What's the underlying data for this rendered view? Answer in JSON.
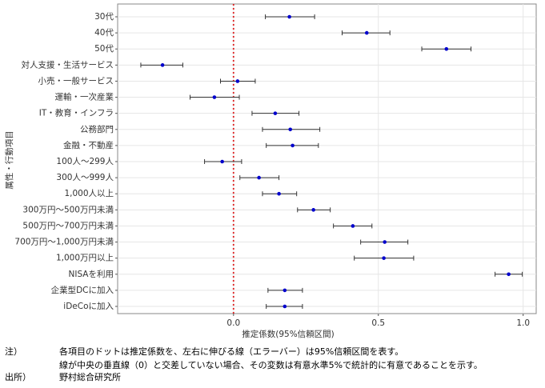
{
  "chart_data": {
    "type": "dot",
    "x_label": "推定係数(95%信頼区間)",
    "y_label": "属性・行動項目",
    "categories": [
      "30代",
      "40代",
      "50代",
      "対人支援・生活サービス",
      "小売・一般サービス",
      "運輸・一次産業",
      "IT・教育・インフラ",
      "公務部門",
      "金融・不動産",
      "100人～299人",
      "300人～999人",
      "1,000人以上",
      "300万円～500万円未満",
      "500万円～700万円未満",
      "700万円～1,000万円未満",
      "1,000万円以上",
      "NISAを利用",
      "企業型DCに加入",
      "iDeCoに加入"
    ],
    "values": [
      0.193,
      0.46,
      0.735,
      -0.245,
      0.014,
      -0.066,
      0.144,
      0.196,
      0.204,
      -0.039,
      0.088,
      0.157,
      0.276,
      0.412,
      0.522,
      0.519,
      0.95,
      0.177,
      0.177
    ],
    "lower": [
      0.11,
      0.375,
      0.65,
      -0.32,
      -0.045,
      -0.15,
      0.064,
      0.1,
      0.113,
      -0.1,
      0.022,
      0.1,
      0.221,
      0.345,
      0.439,
      0.417,
      0.903,
      0.119,
      0.113
    ],
    "upper": [
      0.28,
      0.54,
      0.82,
      -0.175,
      0.075,
      0.02,
      0.226,
      0.298,
      0.293,
      0.028,
      0.157,
      0.218,
      0.334,
      0.478,
      0.602,
      0.622,
      0.997,
      0.238,
      0.238
    ],
    "color": "#0000cc",
    "errorbar_color": "#333333",
    "xlim": [
      -0.4,
      1.045
    ],
    "xticks": [
      {
        "value": 0,
        "label": "0.0"
      },
      0.5,
      {
        "value": 1,
        "label": "1.0"
      }
    ],
    "grid": true,
    "reference_line": {
      "value": 0,
      "color": "#dd2222"
    }
  },
  "notes": [
    {
      "label": "注）",
      "lines": [
        "各項目のドットは推定係数を、左右に伸びる線（エラーバー）は95%信頼区間を表す。",
        "線が中央の垂直線（0）と交差していない場合、その変数は有意水準5%で統計的に有意であることを示す。"
      ]
    },
    {
      "label": "出所）",
      "lines": [
        "野村総合研究所"
      ]
    }
  ]
}
